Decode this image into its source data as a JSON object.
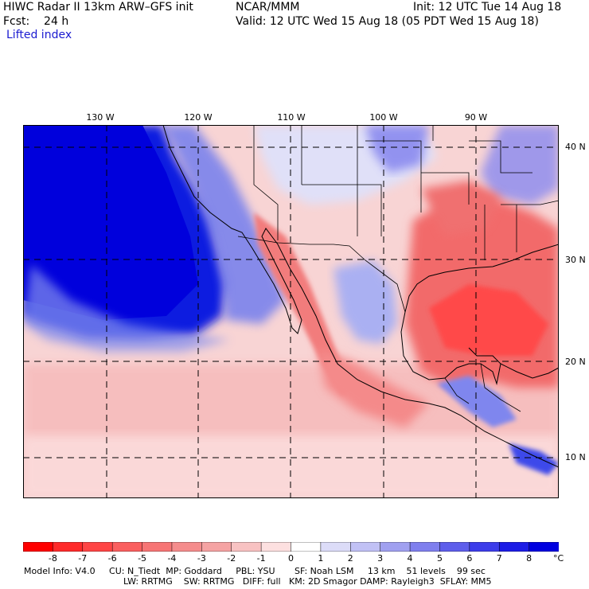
{
  "header": {
    "title": "HIWC Radar II 13km ARW–GFS init",
    "center": "NCAR/MMM",
    "init": "Init: 12 UTC Tue 14 Aug 18",
    "fcst": "Fcst:    24 h",
    "valid": "Valid: 12 UTC Wed 15 Aug 18 (05 PDT Wed 15 Aug 18)",
    "field": "Lifted index"
  },
  "map": {
    "lon_labels": [
      "130 W",
      "120 W",
      "110 W",
      "100 W",
      "90 W"
    ],
    "lat_labels": [
      "40 N",
      "30 N",
      "20 N",
      "10 N"
    ]
  },
  "colorbar": {
    "labels": [
      "-8",
      "-7",
      "-6",
      "-5",
      "-4",
      "-3",
      "-2",
      "-1",
      "0",
      "1",
      "2",
      "3",
      "4",
      "5",
      "6",
      "7",
      "8"
    ],
    "unit": "°C",
    "colors": [
      "#ff0000",
      "#ff2a2a",
      "#ff4545",
      "#fa5f5f",
      "#f77575",
      "#f58c8c",
      "#f5a3a3",
      "#f8c2c2",
      "#fde0e0",
      "#ffffff",
      "#dcdcf8",
      "#c1c1f5",
      "#a0a0f0",
      "#7f7fee",
      "#5e5eeb",
      "#3d3dea",
      "#1c1ce6",
      "#0000e0"
    ]
  },
  "footer": {
    "line1": "Model Info: V4.0     CU: N_Tiedt  MP: Goddard     PBL: YSU       SF: Noah LSM     13 km    51 levels    99 sec",
    "line2": "LW: RRTMG    SW: RRTMG   DIFF: full   KM: 2D Smagor DAMP: Rayleigh3  SFLAY: MM5"
  }
}
